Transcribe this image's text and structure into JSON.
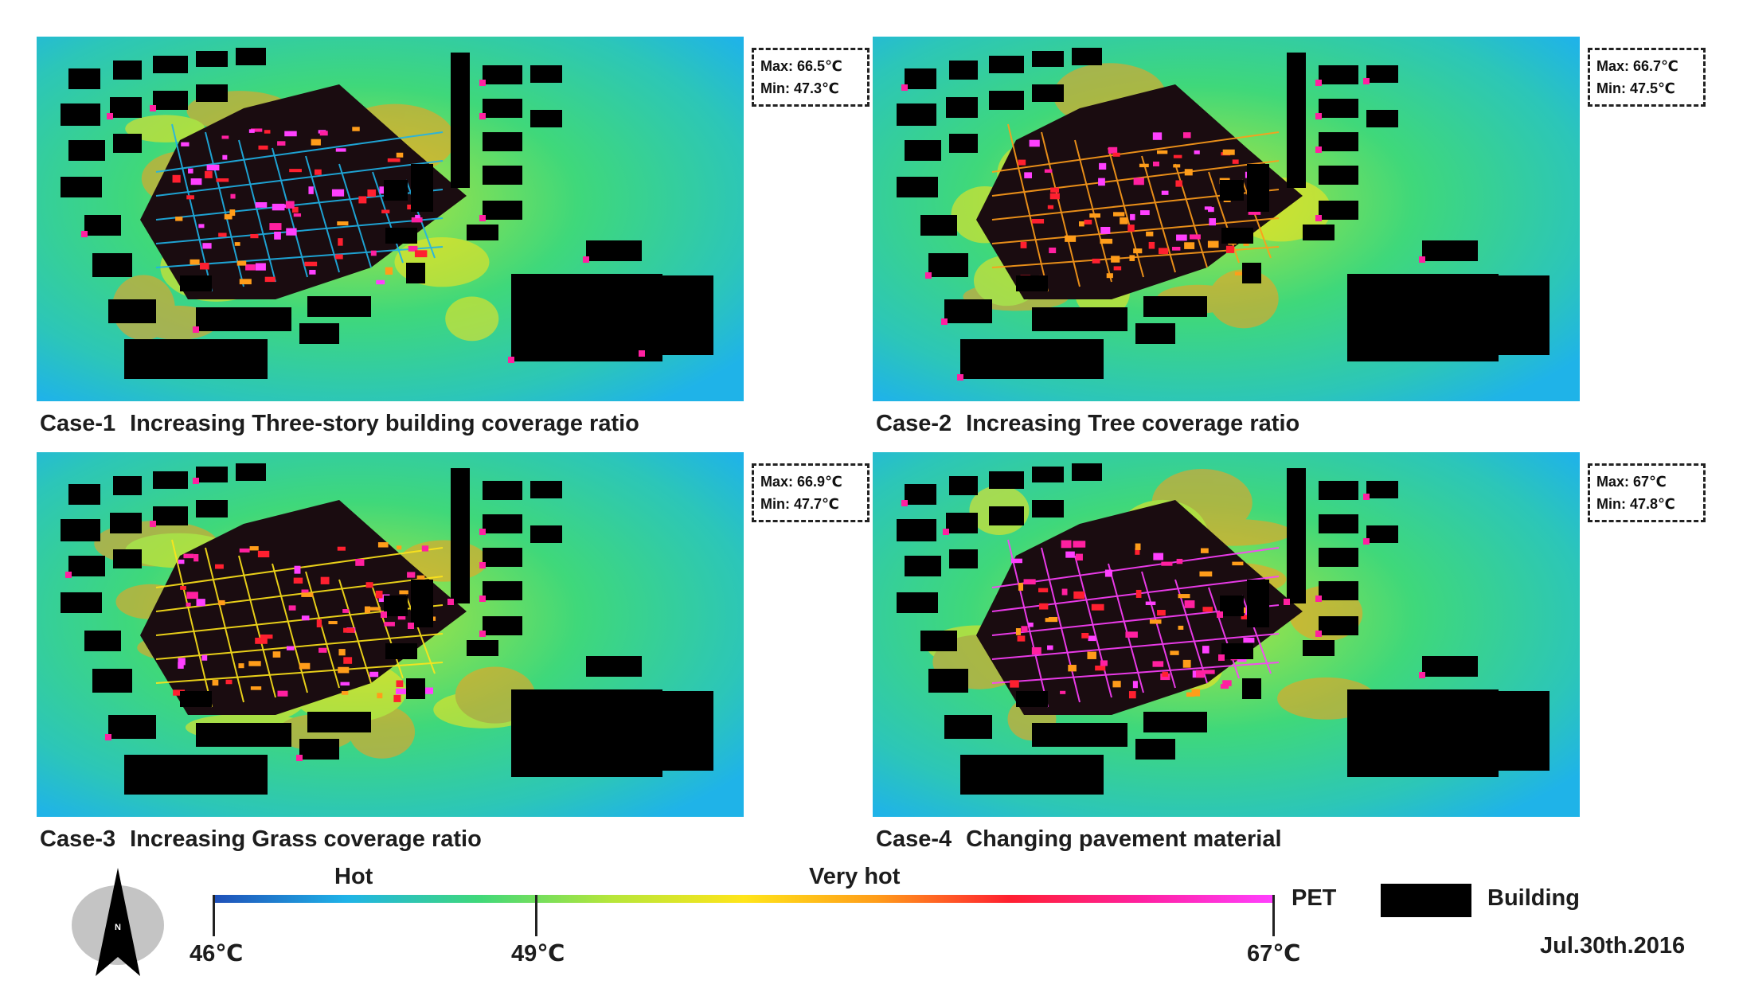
{
  "panels": [
    {
      "id": "case-1",
      "case_label": "Case-1",
      "title": "Increasing Three-story building coverage ratio",
      "max": "Max: 66.5℃",
      "min": "Min: 47.3℃",
      "variant": 0
    },
    {
      "id": "case-2",
      "case_label": "Case-2",
      "title": "Increasing Tree coverage ratio",
      "max": "Max: 66.7℃",
      "min": "Min: 47.5℃",
      "variant": 1
    },
    {
      "id": "case-3",
      "case_label": "Case-3",
      "title": "Increasing Grass coverage ratio",
      "max": "Max: 66.9℃",
      "min": "Min: 47.7℃",
      "variant": 2
    },
    {
      "id": "case-4",
      "case_label": "Case-4",
      "title": "Changing pavement material",
      "max": "Max: 67℃",
      "min": "Min: 47.8℃",
      "variant": 3
    }
  ],
  "legend": {
    "zone_hot": "Hot",
    "zone_very_hot": "Very hot",
    "tick_min": "46℃",
    "tick_mid": "49℃",
    "tick_max": "67℃",
    "scale_name": "PET",
    "building_label": "Building",
    "date": "Jul.30th.2016",
    "north_symbol": "N",
    "colors": [
      "#1f4fb8",
      "#1fb3e8",
      "#3fd87a",
      "#b6e63a",
      "#ffe51a",
      "#ff9d1a",
      "#ff2030",
      "#ff20a0",
      "#ff40ff"
    ],
    "building_color": "#000000"
  }
}
